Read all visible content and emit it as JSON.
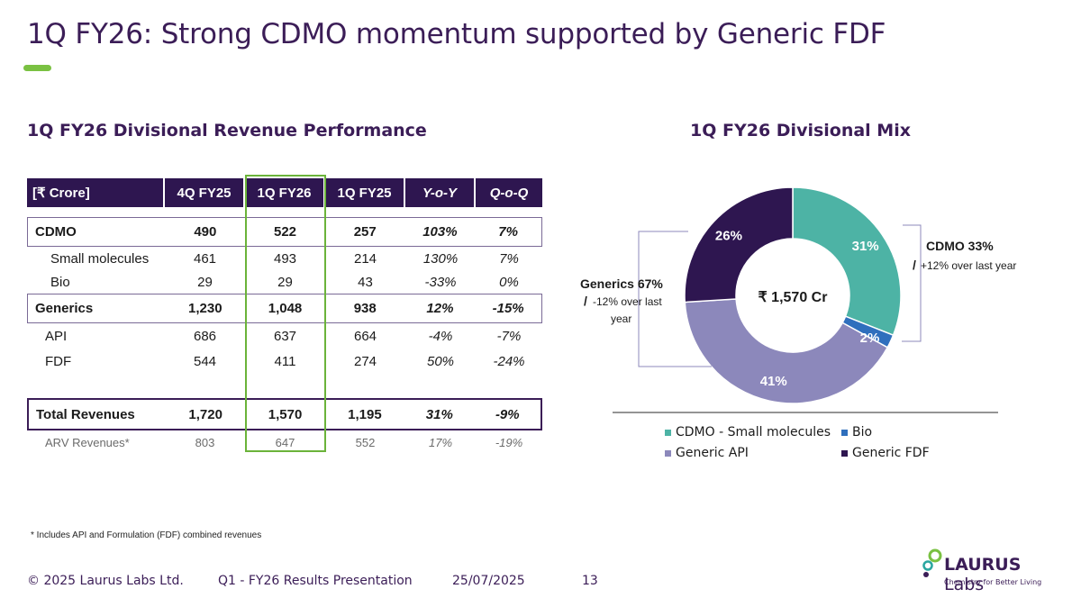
{
  "title": "1Q FY26: Strong CDMO momentum supported by Generic FDF",
  "left_heading": "1Q FY26  Divisional Revenue Performance",
  "right_heading": "1Q FY26  Divisional Mix",
  "table": {
    "headers": [
      "[₹ Crore]",
      "4Q FY25",
      "1Q FY26",
      "1Q FY25",
      "Y-o-Y",
      "Q-o-Q"
    ],
    "rows": [
      {
        "label": "CDMO",
        "v": [
          "490",
          "522",
          "257",
          "103%",
          "7%"
        ]
      },
      {
        "label": "Small molecules",
        "v": [
          "461",
          "493",
          "214",
          "130%",
          "7%"
        ]
      },
      {
        "label": "Bio",
        "v": [
          "29",
          "29",
          "43",
          "-33%",
          "0%"
        ]
      },
      {
        "label": "Generics",
        "v": [
          "1,230",
          "1,048",
          "938",
          "12%",
          "-15%"
        ]
      },
      {
        "label": "API",
        "v": [
          "686",
          "637",
          "664",
          "-4%",
          "-7%"
        ]
      },
      {
        "label": "FDF",
        "v": [
          "544",
          "411",
          "274",
          "50%",
          "-24%"
        ]
      },
      {
        "label": "Total Revenues",
        "v": [
          "1,720",
          "1,570",
          "1,195",
          "31%",
          "-9%"
        ]
      },
      {
        "label": "ARV Revenues*",
        "v": [
          "803",
          "647",
          "552",
          "17%",
          "-19%"
        ]
      }
    ]
  },
  "footnote": "* Includes API and Formulation (FDF) combined revenues",
  "chart_data": {
    "type": "pie",
    "center_label": "₹ 1,570 Cr",
    "categories": [
      "CDMO - Small molecules",
      "Bio",
      "Generic API",
      "Generic FDF"
    ],
    "values": [
      31,
      2,
      41,
      26
    ],
    "data_labels": [
      "31%",
      "2%",
      "41%",
      "26%"
    ],
    "colors": [
      "#4db3a5",
      "#2f6fbd",
      "#8c88bb",
      "#2e1650"
    ],
    "legend_position": "bottom",
    "annotations": {
      "cdmo_title": "CDMO 33%",
      "cdmo_slash": "/",
      "cdmo_note": "+12% over last year",
      "gen_title": "Generics 67%",
      "gen_slash": "/",
      "gen_note_1": "-12% over last",
      "gen_note_2": "year"
    }
  },
  "footer": {
    "copyright": "© 2025  Laurus Labs Ltd.",
    "presentation": "Q1 - FY26  Results Presentation",
    "date": "25/07/2025",
    "page": "13"
  },
  "logo": {
    "name": "LAURUS",
    "suffix": "Labs",
    "tagline": "Chemistry for Better Living"
  },
  "colors": {
    "brand_purple": "#3b1d57",
    "header_purple": "#2e1650",
    "accent_green": "#7ac142"
  }
}
